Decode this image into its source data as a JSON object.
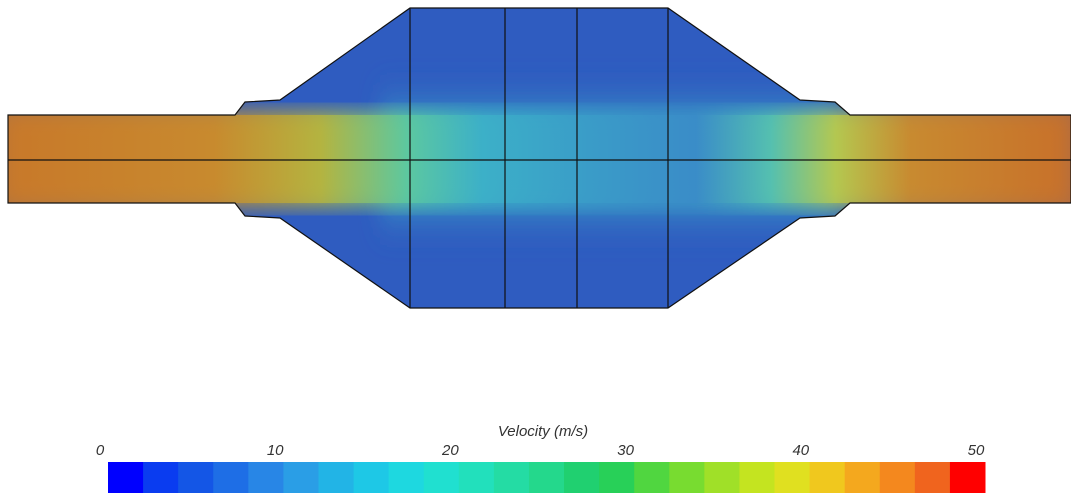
{
  "legend": {
    "title": "Velocity (m/s)",
    "range": [
      0,
      50
    ],
    "ticks": [
      0,
      10,
      20,
      30,
      40,
      50
    ],
    "colors": [
      "#0000ff",
      "#0a3cf0",
      "#1456e6",
      "#1e6ee6",
      "#2886e6",
      "#2a9ee6",
      "#22b4e6",
      "#1ec8e6",
      "#1ed8e0",
      "#20e0d0",
      "#22e0bc",
      "#24dca4",
      "#24d88c",
      "#20d070",
      "#28d058",
      "#50d640",
      "#78dc30",
      "#a0e028",
      "#c4e420",
      "#e0e020",
      "#f0c81e",
      "#f4a81e",
      "#f4881e",
      "#f0641e",
      "#ff0000"
    ]
  }
}
